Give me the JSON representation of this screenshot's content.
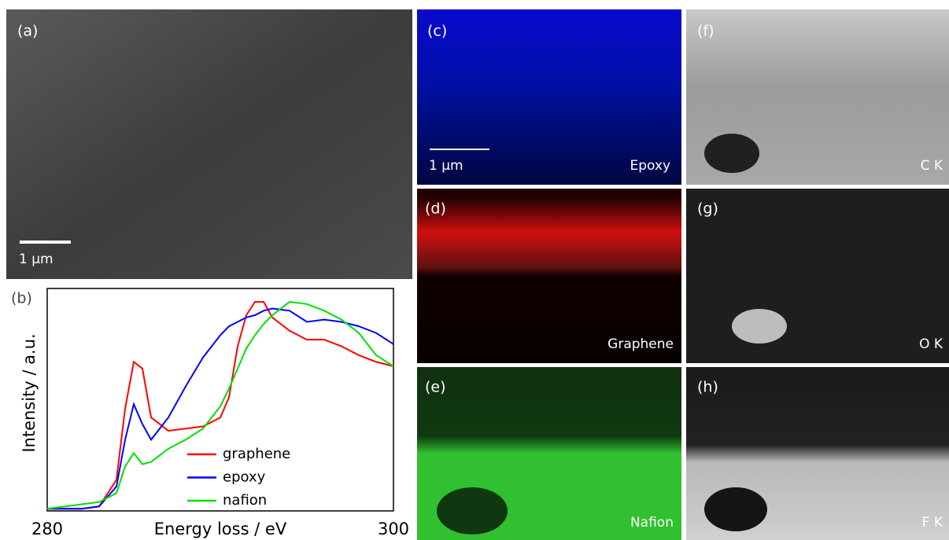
{
  "panels": [
    {
      "label": "(a)",
      "scale_bar": "1 μm"
    },
    {
      "label": "(c)",
      "scale_bar": "1 μm",
      "caption": "Epoxy"
    },
    {
      "label": "(d)",
      "caption": "Graphene"
    },
    {
      "label": "(e)",
      "caption": "Nafion"
    },
    {
      "label": "(f)",
      "caption": "C K"
    },
    {
      "label": "(g)",
      "caption": "O K"
    },
    {
      "label": "(h)",
      "caption": "F K"
    }
  ],
  "chart_data": {
    "type": "line",
    "panel_label": "(b)",
    "x_label": "Energy loss / eV",
    "y_label": "Intensity / a.u.",
    "x": [
      280,
      282,
      283,
      284,
      284.5,
      285,
      285.5,
      286,
      287,
      288,
      289,
      290,
      290.5,
      291,
      291.5,
      292,
      292.5,
      293,
      294,
      295,
      296,
      297,
      298,
      299,
      300
    ],
    "series": [
      {
        "name": "graphene",
        "color": "#ff0000",
        "values": [
          0.01,
          0.01,
          0.02,
          0.14,
          0.46,
          0.67,
          0.64,
          0.42,
          0.36,
          0.37,
          0.38,
          0.42,
          0.51,
          0.74,
          0.88,
          0.94,
          0.94,
          0.87,
          0.81,
          0.77,
          0.77,
          0.74,
          0.7,
          0.67,
          0.65
        ]
      },
      {
        "name": "epoxy",
        "color": "#0000ff",
        "values": [
          0.01,
          0.01,
          0.02,
          0.11,
          0.32,
          0.48,
          0.39,
          0.32,
          0.42,
          0.56,
          0.69,
          0.79,
          0.83,
          0.85,
          0.87,
          0.88,
          0.9,
          0.91,
          0.9,
          0.85,
          0.86,
          0.85,
          0.83,
          0.8,
          0.75
        ]
      },
      {
        "name": "nafion",
        "color": "#00e000",
        "values": [
          0.01,
          0.03,
          0.04,
          0.08,
          0.2,
          0.26,
          0.21,
          0.22,
          0.28,
          0.32,
          0.37,
          0.47,
          0.55,
          0.64,
          0.73,
          0.79,
          0.84,
          0.88,
          0.94,
          0.93,
          0.9,
          0.86,
          0.8,
          0.7,
          0.65
        ]
      }
    ],
    "xlim": [
      280,
      300
    ],
    "xticks": [
      280,
      300
    ],
    "ylim": [
      0,
      1
    ]
  }
}
